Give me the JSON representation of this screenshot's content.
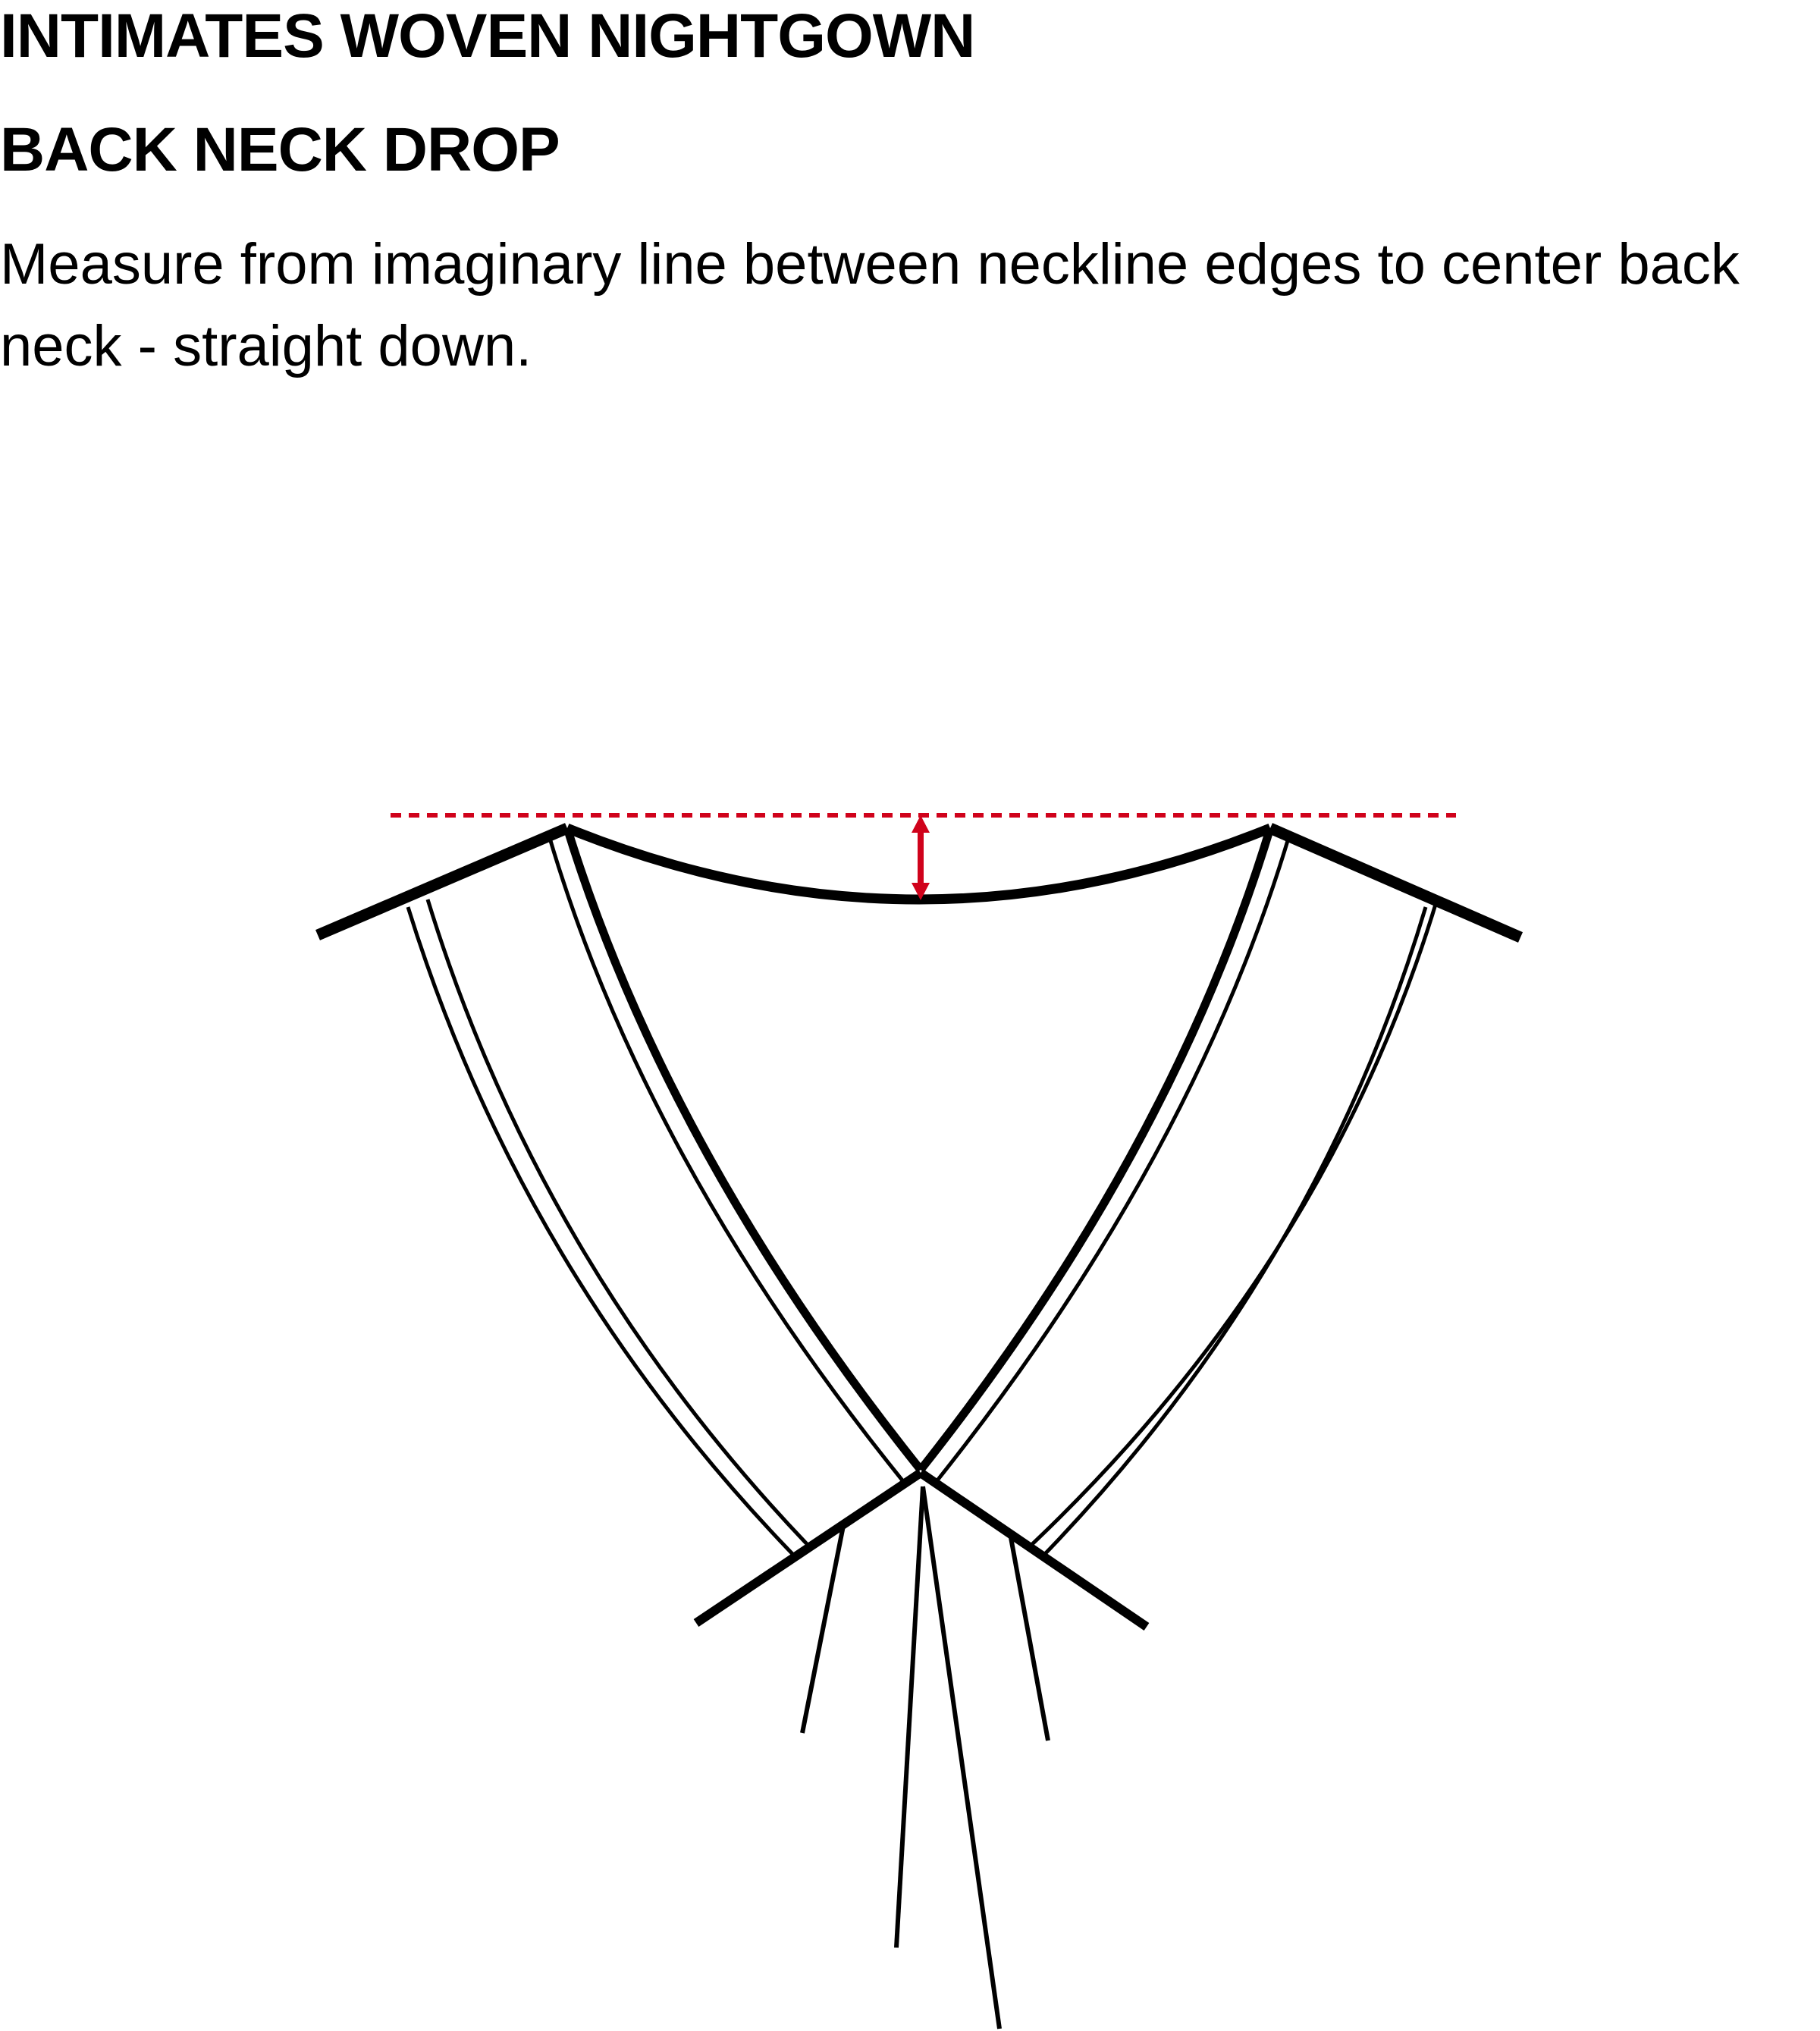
{
  "header": {
    "title": "INTIMATES WOVEN NIGHTGOWN",
    "subtitle": "BACK NECK DROP",
    "description": "Measure from imaginary line between neckline edges to center back neck - straight down."
  },
  "diagram": {
    "measurement_line_color": "#d0021b",
    "outline_color": "#000000",
    "icons": [
      "garment-neckline-sketch",
      "measurement-arrow-icon",
      "reference-line"
    ]
  }
}
